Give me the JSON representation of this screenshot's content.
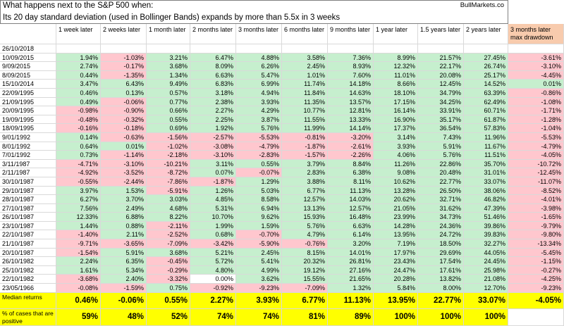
{
  "header": {
    "title_line1": "What happens next to the S&P 500 when:",
    "title_line2": "Its 20 day standard deviation (used in Bollinger Bands) expands by more than 5.5x in 3 weeks",
    "source": "BullMarkets.co"
  },
  "table": {
    "columns": [
      "1 week later",
      "2 weeks later",
      "1 month later",
      "2 months later",
      "3 months later",
      "6 months later",
      "9 months later",
      "1 year later",
      "1.5 years later",
      "2 years later",
      "3 months later max drawdown"
    ],
    "rows": [
      {
        "date": "26/10/2018",
        "values": []
      },
      {
        "date": "10/09/2015",
        "values": [
          "1.94%",
          "-1.03%",
          "3.21%",
          "6.47%",
          "4.88%",
          "3.58%",
          "7.36%",
          "8.99%",
          "21.57%",
          "27.45%",
          "-3.61%"
        ]
      },
      {
        "date": "9/09/2015",
        "values": [
          "2.74%",
          "-0.17%",
          "3.68%",
          "8.09%",
          "6.26%",
          "2.45%",
          "8.93%",
          "12.32%",
          "22.17%",
          "26.74%",
          "-3.10%"
        ]
      },
      {
        "date": "8/09/2015",
        "values": [
          "0.44%",
          "-1.35%",
          "1.34%",
          "6.63%",
          "5.47%",
          "1.01%",
          "7.60%",
          "11.01%",
          "20.08%",
          "25.17%",
          "-4.45%"
        ]
      },
      {
        "date": "15/10/2014",
        "values": [
          "3.47%",
          "6.43%",
          "9.49%",
          "6.83%",
          "6.99%",
          "11.74%",
          "14.18%",
          "8.66%",
          "12.45%",
          "14.52%",
          "0.01%"
        ]
      },
      {
        "date": "22/09/1995",
        "values": [
          "0.46%",
          "0.13%",
          "0.57%",
          "3.18%",
          "4.94%",
          "11.84%",
          "14.63%",
          "18.10%",
          "34.79%",
          "63.39%",
          "-0.86%"
        ]
      },
      {
        "date": "21/09/1995",
        "values": [
          "0.49%",
          "-0.06%",
          "0.77%",
          "2.38%",
          "3.93%",
          "11.35%",
          "13.57%",
          "17.15%",
          "34.25%",
          "62.49%",
          "-1.08%"
        ]
      },
      {
        "date": "20/09/1995",
        "values": [
          "-0.98%",
          "-0.90%",
          "0.66%",
          "2.27%",
          "4.29%",
          "10.77%",
          "12.81%",
          "16.14%",
          "33.91%",
          "60.71%",
          "-1.71%"
        ]
      },
      {
        "date": "19/09/1995",
        "values": [
          "-0.48%",
          "-0.32%",
          "0.55%",
          "2.25%",
          "3.87%",
          "11.55%",
          "13.33%",
          "16.90%",
          "35.17%",
          "61.87%",
          "-1.28%"
        ]
      },
      {
        "date": "18/09/1995",
        "values": [
          "-0.16%",
          "-0.18%",
          "0.69%",
          "1.92%",
          "5.76%",
          "11.99%",
          "14.14%",
          "17.37%",
          "36.54%",
          "57.83%",
          "-1.04%"
        ]
      },
      {
        "date": "9/01/1992",
        "values": [
          "0.14%",
          "-0.63%",
          "-1.56%",
          "-2.57%",
          "-5.53%",
          "-0.81%",
          "-3.20%",
          "3.14%",
          "7.43%",
          "11.96%",
          "-5.53%"
        ]
      },
      {
        "date": "8/01/1992",
        "values": [
          "0.64%",
          "0.01%",
          "-1.02%",
          "-3.08%",
          "-4.79%",
          "-1.87%",
          "-2.61%",
          "3.93%",
          "5.91%",
          "11.67%",
          "-4.79%"
        ]
      },
      {
        "date": "7/01/1992",
        "values": [
          "0.73%",
          "-1.14%",
          "-2.18%",
          "-3.10%",
          "-2.83%",
          "-1.57%",
          "-2.26%",
          "4.06%",
          "5.76%",
          "11.51%",
          "-4.05%"
        ]
      },
      {
        "date": "3/11/1987",
        "values": [
          "-4.71%",
          "-3.10%",
          "-10.21%",
          "3.11%",
          "0.55%",
          "3.79%",
          "8.84%",
          "11.26%",
          "22.86%",
          "35.70%",
          "-10.72%"
        ]
      },
      {
        "date": "2/11/1987",
        "values": [
          "-4.92%",
          "-3.52%",
          "-8.72%",
          "0.07%",
          "-0.07%",
          "2.83%",
          "6.38%",
          "9.08%",
          "20.48%",
          "31.01%",
          "-12.45%"
        ]
      },
      {
        "date": "30/10/1987",
        "values": [
          "-0.55%",
          "-2.44%",
          "-7.86%",
          "-1.87%",
          "1.29%",
          "3.88%",
          "8.11%",
          "10.62%",
          "22.77%",
          "33.07%",
          "-11.07%"
        ]
      },
      {
        "date": "29/10/1987",
        "values": [
          "3.97%",
          "1.53%",
          "-5.91%",
          "1.26%",
          "5.03%",
          "6.77%",
          "11.13%",
          "13.28%",
          "26.50%",
          "38.06%",
          "-8.52%"
        ]
      },
      {
        "date": "28/10/1987",
        "values": [
          "6.27%",
          "3.70%",
          "3.03%",
          "4.85%",
          "8.58%",
          "12.57%",
          "14.03%",
          "20.62%",
          "32.71%",
          "46.82%",
          "-4.01%"
        ]
      },
      {
        "date": "27/10/1987",
        "values": [
          "7.56%",
          "2.49%",
          "4.68%",
          "5.31%",
          "6.94%",
          "13.13%",
          "12.57%",
          "21.05%",
          "31.62%",
          "47.39%",
          "-3.98%"
        ]
      },
      {
        "date": "26/10/1987",
        "values": [
          "12.33%",
          "6.88%",
          "8.22%",
          "10.70%",
          "9.62%",
          "15.93%",
          "16.48%",
          "23.99%",
          "34.73%",
          "51.46%",
          "-1.65%"
        ]
      },
      {
        "date": "23/10/1987",
        "values": [
          "1.44%",
          "0.88%",
          "-2.11%",
          "1.99%",
          "1.59%",
          "5.76%",
          "6.63%",
          "14.28%",
          "24.36%",
          "39.86%",
          "-9.79%"
        ]
      },
      {
        "date": "22/10/1987",
        "values": [
          "-1.40%",
          "2.11%",
          "-2.52%",
          "0.68%",
          "-0.70%",
          "4.79%",
          "6.14%",
          "13.95%",
          "24.72%",
          "39.83%",
          "-9.80%"
        ]
      },
      {
        "date": "21/10/1987",
        "values": [
          "-9.71%",
          "-3.65%",
          "-7.09%",
          "-3.42%",
          "-5.90%",
          "-0.76%",
          "3.20%",
          "7.19%",
          "18.50%",
          "32.27%",
          "-13.34%"
        ]
      },
      {
        "date": "20/10/1987",
        "values": [
          "-1.54%",
          "5.91%",
          "3.68%",
          "5.21%",
          "2.45%",
          "8.15%",
          "14.01%",
          "17.97%",
          "29.69%",
          "44.05%",
          "-5.45%"
        ]
      },
      {
        "date": "26/10/1982",
        "values": [
          "2.24%",
          "6.35%",
          "-0.45%",
          "5.72%",
          "5.41%",
          "20.32%",
          "26.81%",
          "23.43%",
          "17.54%",
          "24.45%",
          "-1.15%"
        ]
      },
      {
        "date": "25/10/1982",
        "values": [
          "1.61%",
          "5.34%",
          "-0.29%",
          "4.80%",
          "4.99%",
          "19.12%",
          "27.16%",
          "24.47%",
          "17.61%",
          "25.98%",
          "-0.27%"
        ]
      },
      {
        "date": "22/10/1982",
        "values": [
          "-3.68%",
          "2.40%",
          "-3.32%",
          "0.00%",
          "3.62%",
          "15.55%",
          "21.65%",
          "20.28%",
          "13.82%",
          "21.08%",
          "-4.25%"
        ]
      },
      {
        "date": "23/05/1966",
        "values": [
          "-0.08%",
          "-1.59%",
          "0.75%",
          "-0.92%",
          "-9.23%",
          "-7.09%",
          "1.32%",
          "5.84%",
          "8.00%",
          "12.70%",
          "-9.23%"
        ]
      }
    ],
    "median": {
      "label": "Median returns",
      "values": [
        "0.46%",
        "-0.06%",
        "0.55%",
        "2.27%",
        "3.93%",
        "6.77%",
        "11.13%",
        "13.95%",
        "22.77%",
        "33.07%",
        "-4.05%"
      ]
    },
    "positive": {
      "label": "% of cases that are positive",
      "values": [
        "59%",
        "48%",
        "52%",
        "74%",
        "74%",
        "81%",
        "89%",
        "100%",
        "100%",
        "100%"
      ]
    }
  }
}
